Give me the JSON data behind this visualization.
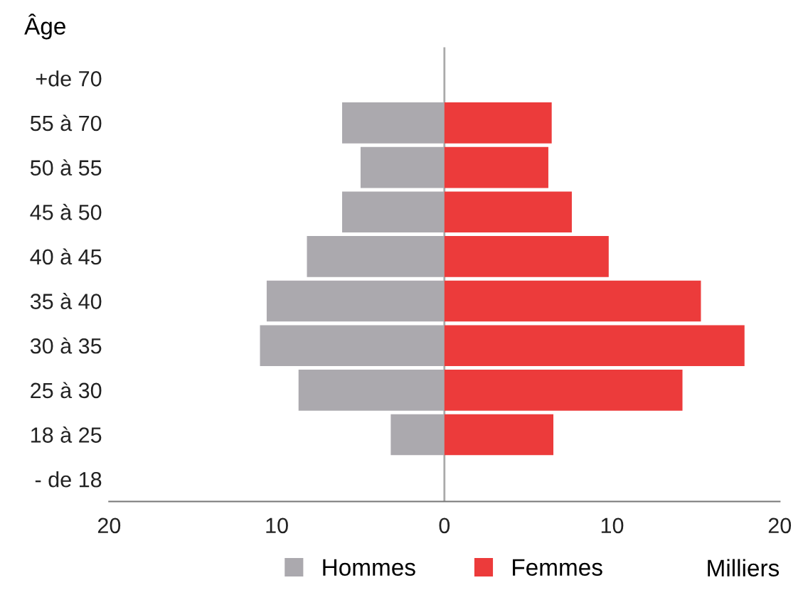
{
  "chart_data": {
    "type": "bar",
    "orientation": "horizontal",
    "stacked": true,
    "ylabel": "Âge",
    "xlabel": "Milliers",
    "categories": [
      "+de 70",
      "55 à 70",
      "50 à 55",
      "45 à 50",
      "40 à 45",
      "35 à 40",
      "30 à 35",
      "25 à 30",
      "18 à 25",
      "- de 18"
    ],
    "series": [
      {
        "name": "Hommes",
        "color": "#aba9ae",
        "values": [
          null,
          -6.1,
          -5.0,
          -6.1,
          -8.2,
          -10.6,
          -11.0,
          -8.7,
          -3.2,
          null
        ]
      },
      {
        "name": "Femmes",
        "color": "#ec3b3b",
        "values": [
          null,
          6.4,
          6.2,
          7.6,
          9.8,
          15.3,
          17.9,
          14.2,
          6.5,
          null
        ]
      }
    ],
    "xlim": [
      -20,
      20
    ],
    "xticks": [
      {
        "value": -20,
        "label": "20"
      },
      {
        "value": -10,
        "label": "10"
      },
      0,
      10,
      20
    ],
    "ref_lines": [
      {
        "axis": "x",
        "value": 0,
        "color": "#aaaaaa"
      }
    ],
    "grid": false,
    "legend": "bottom"
  }
}
